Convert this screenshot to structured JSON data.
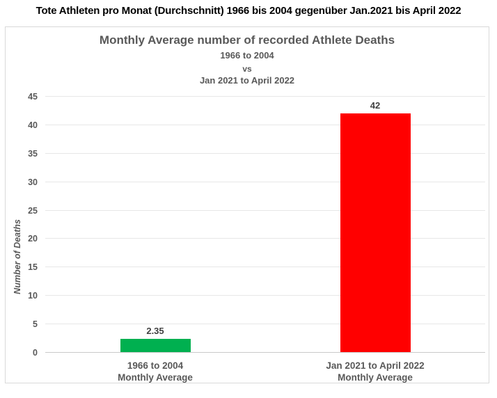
{
  "page_title": "Tote Athleten pro Monat (Durchschnitt) 1966 bis 2004 gegenüber Jan.2021 bis April 2022",
  "chart_data": {
    "type": "bar",
    "title": "Monthly Average number of recorded Athlete Deaths",
    "subtitle_lines": [
      "1966 to 2004",
      "vs",
      "Jan 2021 to April 2022"
    ],
    "ylabel": "Number of Deaths",
    "xlabel": "",
    "ylim": [
      0,
      45
    ],
    "ytick_step": 5,
    "grid": true,
    "legend": false,
    "categories": [
      "1966 to 2004",
      "Jan 2021 to April 2022"
    ],
    "category_subline": "Monthly Average",
    "values": [
      2.35,
      42
    ],
    "value_labels": [
      "2.35",
      "42"
    ],
    "bar_colors": [
      "#00B050",
      "#FF0000"
    ]
  }
}
